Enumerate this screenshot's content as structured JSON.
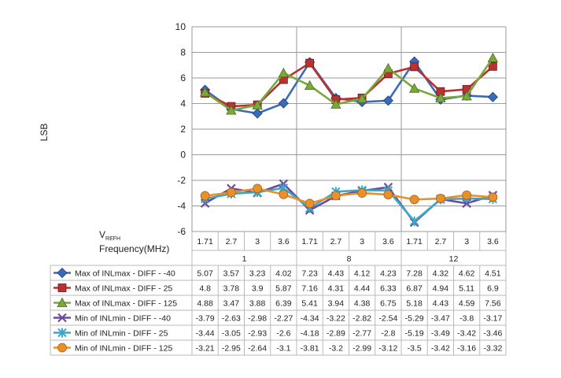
{
  "chart_data": {
    "type": "line",
    "title": "",
    "ylabel": "LSB",
    "ylim": [
      -6,
      10
    ],
    "yticks": [
      "10",
      "8",
      "6",
      "4",
      "2",
      "0",
      "-2",
      "-4",
      "-6"
    ],
    "grid": true,
    "header": {
      "vref_main": "V",
      "vref_sub": "REFH",
      "freq_label": "Frequency(MHz)"
    },
    "x": [
      "1.71",
      "2.7",
      "3",
      "3.6",
      "1.71",
      "2.7",
      "3",
      "3.6",
      "1.71",
      "2.7",
      "3",
      "3.6"
    ],
    "groups": [
      {
        "label": "1"
      },
      {
        "label": "8"
      },
      {
        "label": "12"
      }
    ],
    "series": [
      {
        "name": "Max of INLmax - DIFF - -40",
        "color": "#3a6ab8",
        "marker": "diamond",
        "values": [
          5.07,
          3.57,
          3.23,
          4.02,
          7.23,
          4.43,
          4.12,
          4.23,
          7.28,
          4.32,
          4.62,
          4.51
        ],
        "labels": [
          "5.07",
          "3.57",
          "3.23",
          "4.02",
          "7.23",
          "4.43",
          "4.12",
          "4.23",
          "7.28",
          "4.32",
          "4.62",
          "4.51"
        ]
      },
      {
        "name": "Max of INLmax - DIFF - 25",
        "color": "#b83232",
        "marker": "square",
        "values": [
          4.8,
          3.78,
          3.9,
          5.87,
          7.16,
          4.31,
          4.44,
          6.33,
          6.87,
          4.94,
          5.11,
          6.9
        ],
        "labels": [
          "4.8",
          "3.78",
          "3.9",
          "5.87",
          "7.16",
          "4.31",
          "4.44",
          "6.33",
          "6.87",
          "4.94",
          "5.11",
          "6.9"
        ]
      },
      {
        "name": "Max of INLmax - DIFF - 125",
        "color": "#7aa83a",
        "marker": "triangle",
        "values": [
          4.88,
          3.47,
          3.88,
          6.39,
          5.41,
          3.94,
          4.38,
          6.75,
          5.18,
          4.43,
          4.59,
          7.56
        ],
        "labels": [
          "4.88",
          "3.47",
          "3.88",
          "6.39",
          "5.41",
          "3.94",
          "4.38",
          "6.75",
          "5.18",
          "4.43",
          "4.59",
          "7.56"
        ]
      },
      {
        "name": "Min of INLmin - DIFF - -40",
        "color": "#6a4a9a",
        "marker": "x",
        "values": [
          -3.79,
          -2.63,
          -2.98,
          -2.27,
          -4.34,
          -3.22,
          -2.82,
          -2.54,
          -5.29,
          -3.47,
          -3.8,
          -3.17
        ],
        "labels": [
          "-3.79",
          "-2.63",
          "-2.98",
          "-2.27",
          "-4.34",
          "-3.22",
          "-2.82",
          "-2.54",
          "-5.29",
          "-3.47",
          "-3.8",
          "-3.17"
        ]
      },
      {
        "name": "Min of INLmin - DIFF - 25",
        "color": "#3aa8c8",
        "marker": "star",
        "values": [
          -3.44,
          -3.05,
          -2.93,
          -2.6,
          -4.18,
          -2.89,
          -2.77,
          -2.8,
          -5.19,
          -3.49,
          -3.42,
          -3.46
        ],
        "labels": [
          "-3.44",
          "-3.05",
          "-2.93",
          "-2.6",
          "-4.18",
          "-2.89",
          "-2.77",
          "-2.8",
          "-5.19",
          "-3.49",
          "-3.42",
          "-3.46"
        ]
      },
      {
        "name": "Min of INLmin - DIFF - 125",
        "color": "#e8902a",
        "marker": "circle",
        "values": [
          -3.21,
          -2.95,
          -2.64,
          -3.1,
          -3.81,
          -3.2,
          -2.99,
          -3.12,
          -3.5,
          -3.42,
          -3.16,
          -3.32
        ],
        "labels": [
          "-3.21",
          "-2.95",
          "-2.64",
          "-3.1",
          "-3.81",
          "-3.2",
          "-2.99",
          "-3.12",
          "-3.5",
          "-3.42",
          "-3.16",
          "-3.32"
        ]
      }
    ]
  }
}
